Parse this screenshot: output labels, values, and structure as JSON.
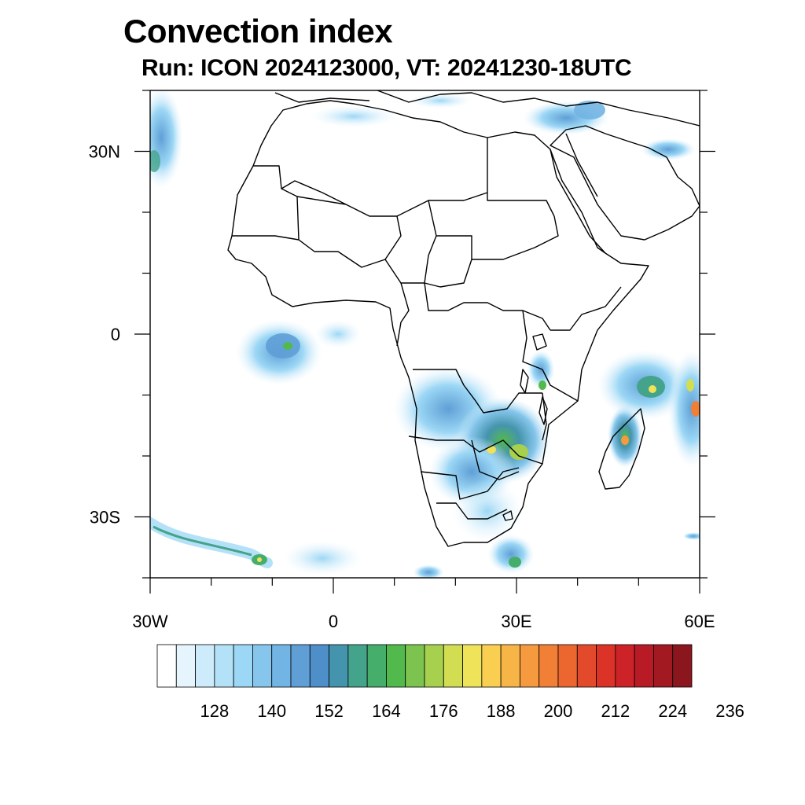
{
  "title": "Convection index",
  "subtitle": "Run: ICON 2024123000,  VT: 20241230-18UTC",
  "map": {
    "projection": "equirectangular",
    "lon_range": [
      -30,
      60
    ],
    "lat_range": [
      -40,
      40
    ],
    "lat_ticks": [
      {
        "value": 30,
        "label": "30N"
      },
      {
        "value": 0,
        "label": "0"
      },
      {
        "value": -30,
        "label": "30S"
      }
    ],
    "lon_ticks": [
      {
        "value": -30,
        "label": "30W"
      },
      {
        "value": 0,
        "label": "0"
      },
      {
        "value": 30,
        "label": "30E"
      },
      {
        "value": 60,
        "label": "60E"
      }
    ]
  },
  "colorbar": {
    "colors": [
      "#ffffff",
      "#e6f5fd",
      "#cdebfa",
      "#b3e1f7",
      "#9cd7f5",
      "#86c6ec",
      "#72b4e3",
      "#5f9fd6",
      "#4e8ec9",
      "#4594ad",
      "#43a48b",
      "#45ae6a",
      "#52b94c",
      "#7cc44f",
      "#a7d04e",
      "#d2dd52",
      "#efe35a",
      "#f9ce51",
      "#f7b547",
      "#f59a3e",
      "#f17f36",
      "#ec662f",
      "#e34a2b",
      "#dc3328",
      "#cd2328",
      "#b81b26",
      "#a31922",
      "#8c161d"
    ],
    "labels": [
      "128",
      "140",
      "152",
      "164",
      "176",
      "188",
      "200",
      "212",
      "224",
      "236"
    ]
  }
}
